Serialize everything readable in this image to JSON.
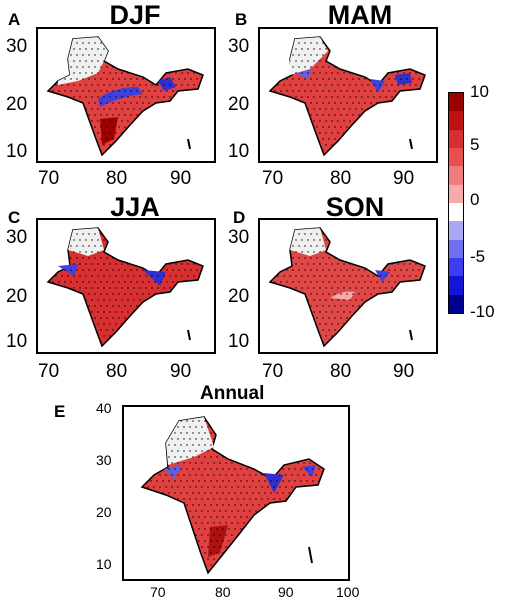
{
  "panels": [
    {
      "letter": "A",
      "title": "DJF",
      "yticks": [
        "30",
        "20",
        "10"
      ],
      "xticks": [
        "70",
        "80",
        "90"
      ]
    },
    {
      "letter": "B",
      "title": "MAM",
      "yticks": [
        "30",
        "20",
        "10"
      ],
      "xticks": [
        "70",
        "80",
        "90"
      ]
    },
    {
      "letter": "C",
      "title": "JJA",
      "yticks": [
        "30",
        "20",
        "10"
      ],
      "xticks": [
        "70",
        "80",
        "90"
      ]
    },
    {
      "letter": "D",
      "title": "SON",
      "yticks": [
        "30",
        "20",
        "10"
      ],
      "xticks": [
        "70",
        "80",
        "90"
      ]
    },
    {
      "letter": "E",
      "title": "Annual",
      "yticks": [
        "40",
        "30",
        "20",
        "10"
      ],
      "xticks": [
        "70",
        "80",
        "90",
        "100"
      ]
    }
  ],
  "colorbar": {
    "ticks": [
      "10",
      "5",
      "0",
      "-5",
      "-10"
    ],
    "colors": [
      "#9b0000",
      "#c01010",
      "#d83030",
      "#e85050",
      "#f07c7c",
      "#f6aaaa",
      "#ffffff",
      "#a8a8f4",
      "#7070f0",
      "#3c3cf0",
      "#1515d8",
      "#000090"
    ]
  }
}
